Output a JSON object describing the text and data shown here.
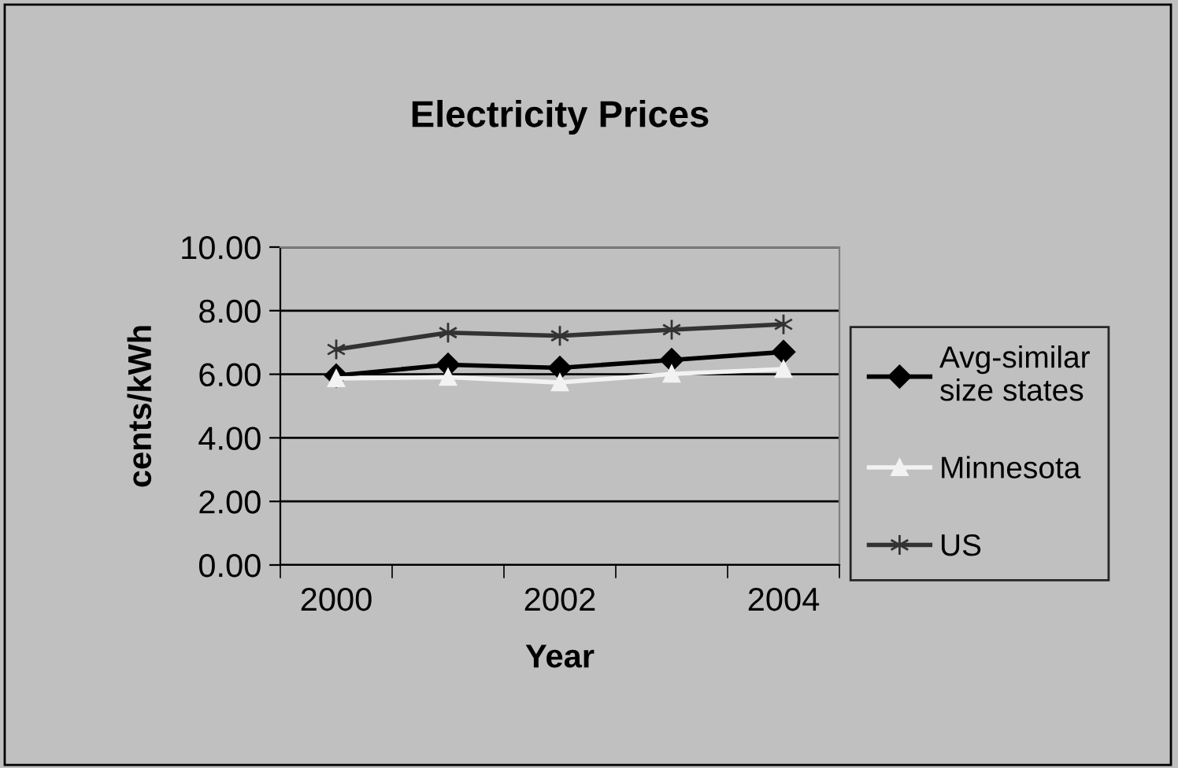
{
  "chart_data": {
    "type": "line",
    "title": "Electricity Prices",
    "xlabel": "Year",
    "ylabel": "cents/kWh",
    "categories": [
      "2000",
      null,
      "2002",
      null,
      "2004"
    ],
    "series": [
      {
        "name": "Avg-similar\nsize states",
        "color": "#000000",
        "marker": "diamond",
        "values": [
          5.96,
          6.3,
          6.2,
          6.45,
          6.7
        ]
      },
      {
        "name": "Minnesota",
        "color": "#f2f2f2",
        "marker": "triangle",
        "values": [
          5.87,
          5.91,
          5.74,
          6.01,
          6.16
        ]
      },
      {
        "name": "US",
        "color": "#333333",
        "marker": "cross",
        "values": [
          6.78,
          7.31,
          7.21,
          7.4,
          7.57
        ]
      }
    ],
    "ylim": [
      0,
      10
    ],
    "yticks": [
      {
        "value": 0,
        "label": "0.00"
      },
      {
        "value": 2,
        "label": "2.00"
      },
      {
        "value": 4,
        "label": "4.00"
      },
      {
        "value": 6,
        "label": "6.00"
      },
      {
        "value": 8,
        "label": "8.00"
      },
      {
        "value": 10,
        "label": "10.00"
      }
    ],
    "grid": "y",
    "legend": "right",
    "line_style": "solid"
  }
}
